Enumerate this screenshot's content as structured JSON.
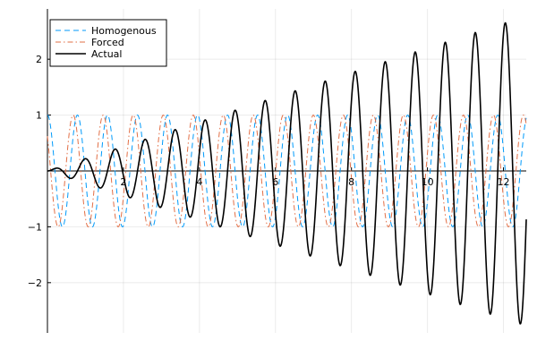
{
  "chart_data": {
    "type": "line",
    "title": "",
    "xlabel": "",
    "ylabel": "",
    "xlim": [
      0,
      12.6
    ],
    "ylim": [
      -2.9,
      2.9
    ],
    "grid": true,
    "axes_through_origin": true,
    "legend_position": "top-left",
    "x_ticks": [
      2,
      4,
      6,
      8,
      10,
      12
    ],
    "x_tick_labels": [
      "2",
      "4",
      "6",
      "8",
      "10",
      "12"
    ],
    "y_ticks": [
      -2,
      -1,
      1,
      2
    ],
    "y_tick_labels": [
      "−2",
      "−1",
      "1",
      "2"
    ],
    "series": [
      {
        "name": "Homogenous",
        "color": "#009AFA",
        "style": "dashed",
        "description_formula": "cos(2*pi*t / 0.79)",
        "period": 0.79,
        "amplitude": 1
      },
      {
        "name": "Forced",
        "color": "#E26F46",
        "style": "dashdot",
        "description_formula": "cos(2*pi*t / 0.79 + 0.9)",
        "period": 0.79,
        "amplitude": 1
      },
      {
        "name": "Actual",
        "color": "#000000",
        "style": "solid",
        "description_formula": "0.22 * t * sin(2*pi*t / 0.79)",
        "period": 0.79,
        "amplitude_growth_per_x": 0.22
      }
    ]
  }
}
